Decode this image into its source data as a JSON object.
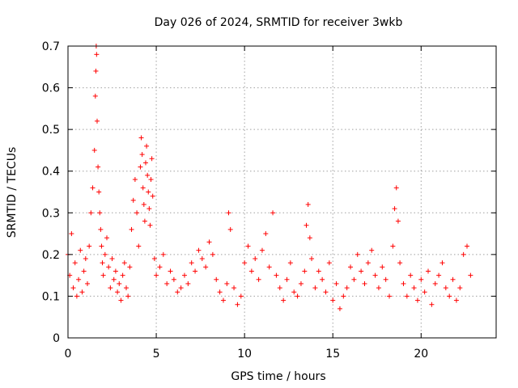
{
  "chart_data": {
    "type": "scatter",
    "title": "Day 026 of 2024, SRMTID for receiver 3wkb",
    "xlabel": "GPS time / hours",
    "ylabel": "SRMTID / TECUs",
    "xlim": [
      0,
      24.25
    ],
    "ylim": [
      0,
      0.7
    ],
    "xticks": [
      0,
      5,
      10,
      15,
      20
    ],
    "xtick_labels": [
      "0",
      "5",
      "10",
      "15",
      "20"
    ],
    "yticks": [
      0,
      0.1,
      0.2,
      0.3,
      0.4,
      0.5,
      0.6,
      0.7
    ],
    "ytick_labels": [
      "0",
      "0.1",
      "0.2",
      "0.3",
      "0.4",
      "0.5",
      "0.6",
      "0.7"
    ],
    "grid": true,
    "marker": "+",
    "color": "#ff0000",
    "series": [
      {
        "name": "SRMTID",
        "x": [
          0.0,
          0.1,
          0.2,
          0.3,
          0.4,
          0.5,
          0.6,
          0.7,
          0.8,
          0.9,
          1.0,
          1.1,
          1.2,
          1.3,
          1.4,
          1.5,
          1.55,
          1.58,
          1.6,
          1.62,
          1.65,
          1.7,
          1.75,
          1.8,
          1.85,
          1.9,
          1.95,
          2.0,
          2.1,
          2.2,
          2.3,
          2.4,
          2.5,
          2.6,
          2.7,
          2.8,
          2.9,
          3.0,
          3.1,
          3.2,
          3.3,
          3.4,
          3.5,
          3.6,
          3.7,
          3.8,
          3.9,
          4.0,
          4.1,
          4.15,
          4.2,
          4.25,
          4.3,
          4.35,
          4.4,
          4.45,
          4.5,
          4.55,
          4.6,
          4.65,
          4.7,
          4.75,
          4.8,
          4.9,
          5.0,
          5.2,
          5.4,
          5.6,
          5.8,
          6.0,
          6.2,
          6.4,
          6.6,
          6.8,
          7.0,
          7.2,
          7.4,
          7.6,
          7.8,
          8.0,
          8.2,
          8.4,
          8.6,
          8.8,
          9.0,
          9.1,
          9.2,
          9.4,
          9.6,
          9.8,
          10.0,
          10.2,
          10.4,
          10.6,
          10.8,
          11.0,
          11.2,
          11.4,
          11.6,
          11.8,
          12.0,
          12.2,
          12.4,
          12.6,
          12.8,
          13.0,
          13.2,
          13.4,
          13.5,
          13.6,
          13.7,
          13.8,
          14.0,
          14.2,
          14.4,
          14.6,
          14.8,
          15.0,
          15.2,
          15.4,
          15.6,
          15.8,
          16.0,
          16.2,
          16.4,
          16.6,
          16.8,
          17.0,
          17.2,
          17.4,
          17.6,
          17.8,
          18.0,
          18.2,
          18.4,
          18.5,
          18.6,
          18.7,
          18.8,
          19.0,
          19.2,
          19.4,
          19.6,
          19.8,
          20.0,
          20.2,
          20.4,
          20.6,
          20.8,
          21.0,
          21.2,
          21.4,
          21.6,
          21.8,
          22.0,
          22.2,
          22.4,
          22.6,
          22.8
        ],
        "y": [
          0.2,
          0.15,
          0.25,
          0.12,
          0.18,
          0.1,
          0.14,
          0.21,
          0.11,
          0.16,
          0.19,
          0.13,
          0.22,
          0.3,
          0.36,
          0.45,
          0.58,
          0.64,
          0.7,
          0.68,
          0.52,
          0.41,
          0.35,
          0.3,
          0.26,
          0.22,
          0.18,
          0.15,
          0.2,
          0.24,
          0.17,
          0.12,
          0.19,
          0.14,
          0.16,
          0.11,
          0.13,
          0.09,
          0.15,
          0.18,
          0.12,
          0.1,
          0.17,
          0.26,
          0.33,
          0.38,
          0.3,
          0.22,
          0.41,
          0.48,
          0.44,
          0.36,
          0.32,
          0.28,
          0.42,
          0.46,
          0.39,
          0.35,
          0.31,
          0.27,
          0.38,
          0.43,
          0.34,
          0.19,
          0.15,
          0.17,
          0.2,
          0.13,
          0.16,
          0.14,
          0.11,
          0.12,
          0.15,
          0.13,
          0.18,
          0.16,
          0.21,
          0.19,
          0.17,
          0.23,
          0.2,
          0.14,
          0.11,
          0.09,
          0.13,
          0.3,
          0.26,
          0.12,
          0.08,
          0.1,
          0.18,
          0.22,
          0.16,
          0.19,
          0.14,
          0.21,
          0.25,
          0.17,
          0.3,
          0.15,
          0.12,
          0.09,
          0.14,
          0.18,
          0.11,
          0.1,
          0.13,
          0.16,
          0.27,
          0.32,
          0.24,
          0.19,
          0.12,
          0.16,
          0.14,
          0.11,
          0.18,
          0.09,
          0.13,
          0.07,
          0.1,
          0.12,
          0.17,
          0.14,
          0.2,
          0.16,
          0.13,
          0.18,
          0.21,
          0.15,
          0.12,
          0.17,
          0.14,
          0.1,
          0.22,
          0.31,
          0.36,
          0.28,
          0.18,
          0.13,
          0.1,
          0.15,
          0.12,
          0.09,
          0.14,
          0.11,
          0.16,
          0.08,
          0.13,
          0.15,
          0.18,
          0.12,
          0.1,
          0.14,
          0.09,
          0.12,
          0.2,
          0.22,
          0.15
        ]
      }
    ]
  }
}
